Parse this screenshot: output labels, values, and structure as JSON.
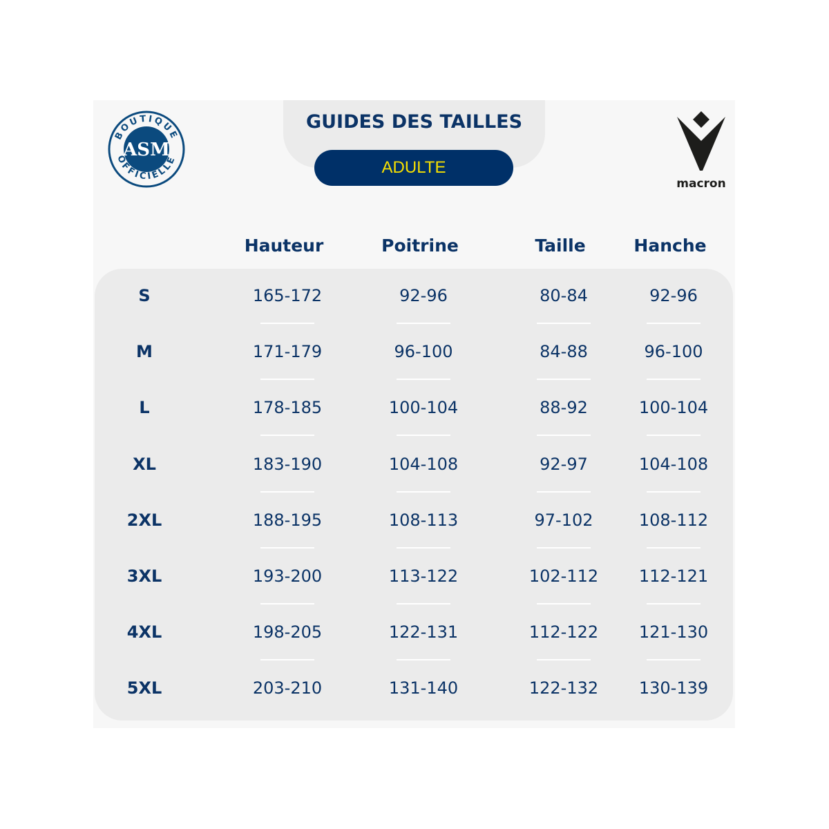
{
  "header": {
    "title": "GUIDES DES TAILLES",
    "category_button": "ADULTE"
  },
  "logos": {
    "left": "BOUTIQUE OFFICIELLE ASM",
    "right": "macron"
  },
  "colors": {
    "navy": "#003068",
    "text": "#0b3366",
    "accent_yellow": "#f7e000",
    "panel": "#ebebeb"
  },
  "table": {
    "columns": [
      "Hauteur",
      "Poitrine",
      "Taille",
      "Hanche"
    ],
    "rows": [
      {
        "size": "S",
        "values": [
          "165-172",
          "92-96",
          "80-84",
          "92-96"
        ]
      },
      {
        "size": "M",
        "values": [
          "171-179",
          "96-100",
          "84-88",
          "96-100"
        ]
      },
      {
        "size": "L",
        "values": [
          "178-185",
          "100-104",
          "88-92",
          "100-104"
        ]
      },
      {
        "size": "XL",
        "values": [
          "183-190",
          "104-108",
          "92-97",
          "104-108"
        ]
      },
      {
        "size": "2XL",
        "values": [
          "188-195",
          "108-113",
          "97-102",
          "108-112"
        ]
      },
      {
        "size": "3XL",
        "values": [
          "193-200",
          "113-122",
          "102-112",
          "112-121"
        ]
      },
      {
        "size": "4XL",
        "values": [
          "198-205",
          "122-131",
          "112-122",
          "121-130"
        ]
      },
      {
        "size": "5XL",
        "values": [
          "203-210",
          "131-140",
          "122-132",
          "130-139"
        ]
      }
    ]
  }
}
